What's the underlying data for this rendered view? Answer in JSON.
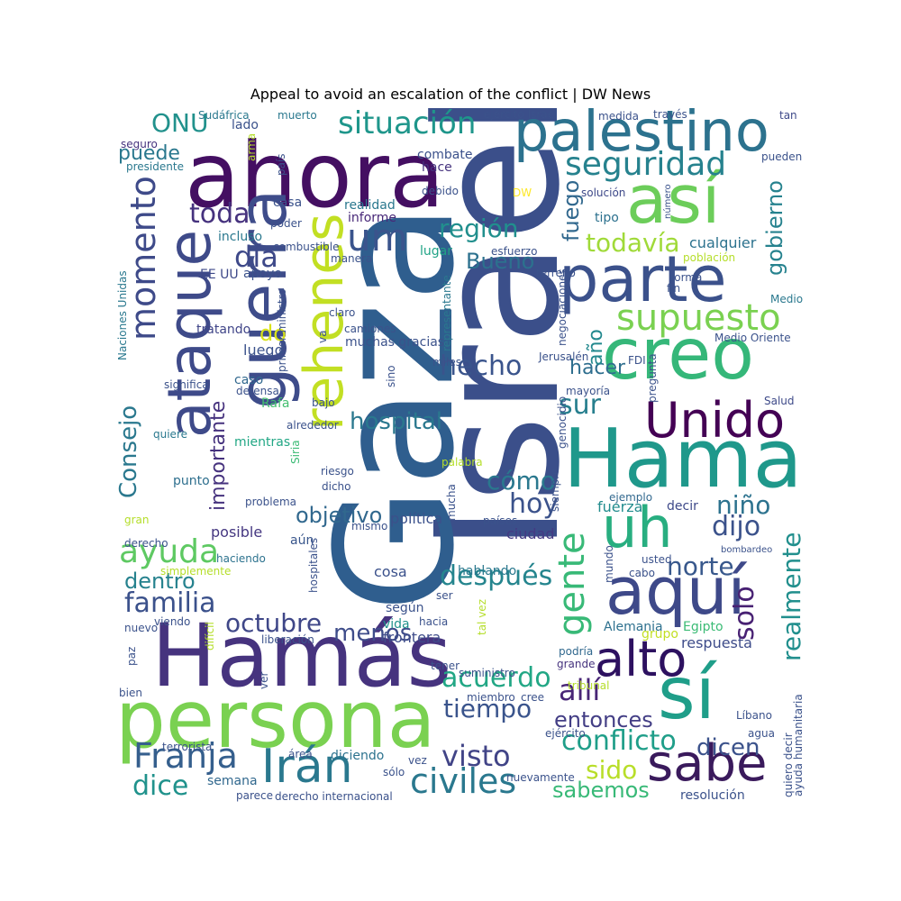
{
  "title": "Appeal to avoid an escalation of the conflict | DW News",
  "words": [
    {
      "text": "Israel",
      "color": "#3b4f8a"
    },
    {
      "text": "Gaza",
      "color": "#2f5e8e"
    },
    {
      "text": "ahora",
      "color": "#440f62"
    },
    {
      "text": "Hamás",
      "color": "#46337e"
    },
    {
      "text": "persona",
      "color": "#7ad151"
    },
    {
      "text": "Hama",
      "color": "#1f988b"
    },
    {
      "text": "guerra",
      "color": "#3e4c8a"
    },
    {
      "text": "ataque",
      "color": "#3e4a89"
    },
    {
      "text": "rehenes",
      "color": "#c2df23"
    },
    {
      "text": "palestino",
      "color": "#2c728e"
    },
    {
      "text": "creo",
      "color": "#35b779"
    },
    {
      "text": "así",
      "color": "#6ccd5a"
    },
    {
      "text": "parte",
      "color": "#3b518b"
    },
    {
      "text": "aquí",
      "color": "#3e4989"
    },
    {
      "text": "sí",
      "color": "#1f9e89"
    },
    {
      "text": "uh",
      "color": "#28ae80"
    },
    {
      "text": "Unido",
      "color": "#440154"
    },
    {
      "text": "sabe",
      "color": "#3a1a5c"
    },
    {
      "text": "alto",
      "color": "#2d1160"
    },
    {
      "text": "Irán",
      "color": "#2a788e"
    },
    {
      "text": "supuesto",
      "color": "#7ad151"
    },
    {
      "text": "momento",
      "color": "#3e4a89"
    },
    {
      "text": "gente",
      "color": "#38b977"
    },
    {
      "text": "seguridad",
      "color": "#26828e"
    },
    {
      "text": "situación",
      "color": "#1f968b"
    },
    {
      "text": "um",
      "color": "#3a548c"
    },
    {
      "text": "Franja",
      "color": "#355f8d"
    },
    {
      "text": "civiles",
      "color": "#2a788e"
    },
    {
      "text": "realmente",
      "color": "#218f8d"
    },
    {
      "text": "ayuda",
      "color": "#5ec962"
    },
    {
      "text": "toda",
      "color": "#46327e"
    },
    {
      "text": "ONU",
      "color": "#21918c"
    },
    {
      "text": "Consejo",
      "color": "#2a788e"
    },
    {
      "text": "región",
      "color": "#218f8d"
    },
    {
      "text": "hecho",
      "color": "#3a548c"
    },
    {
      "text": "todavía",
      "color": "#a0da39"
    },
    {
      "text": "gobierno",
      "color": "#26828e"
    },
    {
      "text": "fuego",
      "color": "#31688e"
    },
    {
      "text": "día",
      "color": "#3e4989"
    },
    {
      "text": "acuerdo",
      "color": "#22a785"
    },
    {
      "text": "familia",
      "color": "#3b518b"
    },
    {
      "text": "octubre",
      "color": "#3f4788"
    },
    {
      "text": "allí",
      "color": "#482576"
    },
    {
      "text": "conflicto",
      "color": "#1f9e89"
    },
    {
      "text": "visto",
      "color": "#414487"
    },
    {
      "text": "dice",
      "color": "#20928c"
    },
    {
      "text": "niño",
      "color": "#2c728e"
    },
    {
      "text": "dijo",
      "color": "#3b528b"
    },
    {
      "text": "norte",
      "color": "#38588c"
    },
    {
      "text": "después",
      "color": "#25858e"
    },
    {
      "text": "hospital",
      "color": "#2a788e"
    },
    {
      "text": "cómo",
      "color": "#2a788e"
    },
    {
      "text": "hoy",
      "color": "#3b528b"
    },
    {
      "text": "sur",
      "color": "#277f8e"
    },
    {
      "text": "Bueno",
      "color": "#2c718e"
    },
    {
      "text": "solo",
      "color": "#482173"
    },
    {
      "text": "dicen",
      "color": "#3b528b"
    },
    {
      "text": "tiempo",
      "color": "#3a548c"
    },
    {
      "text": "entonces",
      "color": "#433e85"
    },
    {
      "text": "sido",
      "color": "#b8de29"
    },
    {
      "text": "sabemos",
      "color": "#38b977"
    },
    {
      "text": "menos",
      "color": "#3e4c8a"
    },
    {
      "text": "dentro",
      "color": "#26828e"
    },
    {
      "text": "objetivo",
      "color": "#31688e"
    },
    {
      "text": "hacer",
      "color": "#2e6e8e"
    },
    {
      "text": "importante",
      "color": "#46327e"
    },
    {
      "text": "año",
      "color": "#23898e"
    },
    {
      "text": "puede",
      "color": "#2a788e"
    },
    {
      "text": "do",
      "color": "#d8e219"
    },
    {
      "text": "lado",
      "color": "#3b528b"
    },
    {
      "text": "muchas gracias",
      "color": "#3b528b"
    },
    {
      "text": "tratando",
      "color": "#404588"
    },
    {
      "text": "luego",
      "color": "#3b528b"
    },
    {
      "text": "política",
      "color": "#3b518b"
    },
    {
      "text": "ciudad",
      "color": "#443a83"
    },
    {
      "text": "frontera",
      "color": "#3e4c8a"
    },
    {
      "text": "cualquier",
      "color": "#2c728e"
    },
    {
      "text": "respuesta",
      "color": "#3e4c8a"
    },
    {
      "text": "Egipto",
      "color": "#3bbb75"
    },
    {
      "text": "Alemania",
      "color": "#2d708e"
    },
    {
      "text": "fuerza",
      "color": "#228c8d"
    },
    {
      "text": "decir",
      "color": "#3e4989"
    },
    {
      "text": "tipo",
      "color": "#2c718e"
    },
    {
      "text": "combate",
      "color": "#3b518b"
    },
    {
      "text": "hace",
      "color": "#46337e"
    },
    {
      "text": "casa",
      "color": "#3b528b"
    },
    {
      "text": "realidad",
      "color": "#2a788e"
    },
    {
      "text": "informe",
      "color": "#482878"
    },
    {
      "text": "lugar",
      "color": "#20a386"
    },
    {
      "text": "posible",
      "color": "#453781"
    },
    {
      "text": "cosa",
      "color": "#3b518b"
    },
    {
      "text": "hablando",
      "color": "#2a788e"
    },
    {
      "text": "según",
      "color": "#3b528b"
    },
    {
      "text": "vida",
      "color": "#20928c"
    },
    {
      "text": "mientras",
      "color": "#22a785"
    },
    {
      "text": "punto",
      "color": "#2e6f8e"
    },
    {
      "text": "caso",
      "color": "#31688e"
    },
    {
      "text": "Rafa",
      "color": "#44bf70"
    },
    {
      "text": "apoyo",
      "color": "#3b528b"
    },
    {
      "text": "incluso",
      "color": "#2a788e"
    },
    {
      "text": "EE UU",
      "color": "#3e4989"
    },
    {
      "text": "diciendo",
      "color": "#2c728e"
    },
    {
      "text": "semana",
      "color": "#31688e"
    },
    {
      "text": "área",
      "color": "#3b528b"
    },
    {
      "text": "derecho",
      "color": "#3b528b"
    },
    {
      "text": "haciendo",
      "color": "#2c728e"
    },
    {
      "text": "aún",
      "color": "#39568c"
    },
    {
      "text": "grupo",
      "color": "#c2df23"
    },
    {
      "text": "podría",
      "color": "#31688e"
    },
    {
      "text": "grande",
      "color": "#46337e"
    },
    {
      "text": "mundo",
      "color": "#3b518b"
    },
    {
      "text": "usted",
      "color": "#3b528b"
    },
    {
      "text": "cabo",
      "color": "#3b528b"
    },
    {
      "text": "ejemplo",
      "color": "#31688e"
    },
    {
      "text": "bombardeo",
      "color": "#3b528b"
    },
    {
      "text": "Salud",
      "color": "#3e4a89"
    },
    {
      "text": "Medio Oriente",
      "color": "#3b528b"
    },
    {
      "text": "Medio",
      "color": "#2a788e"
    },
    {
      "text": "forma",
      "color": "#3b528b"
    },
    {
      "text": "fin",
      "color": "#3b528b"
    },
    {
      "text": "población",
      "color": "#b5de2b"
    },
    {
      "text": "pueden",
      "color": "#3b528b"
    },
    {
      "text": "tan",
      "color": "#3e4989"
    },
    {
      "text": "medida",
      "color": "#3b528b"
    },
    {
      "text": "través",
      "color": "#3b528b"
    },
    {
      "text": "ejército Israel",
      "color": "#3b528b"
    },
    {
      "text": "solución",
      "color": "#3e4989"
    },
    {
      "text": "número",
      "color": "#3b528b"
    },
    {
      "text": "estadounidense",
      "color": "#2a788e"
    },
    {
      "text": "DW",
      "color": "#fde725"
    },
    {
      "text": "debido",
      "color": "#3b528b"
    },
    {
      "text": "esfuerzo",
      "color": "#3b528b"
    },
    {
      "text": "terreno",
      "color": "#3b528b"
    },
    {
      "text": "manera",
      "color": "#3b528b"
    },
    {
      "text": "combustible",
      "color": "#3b528b"
    },
    {
      "text": "poder",
      "color": "#3b528b"
    },
    {
      "text": "país",
      "color": "#3b528b"
    },
    {
      "text": "primer ministro",
      "color": "#3b528b"
    },
    {
      "text": "claro",
      "color": "#3b528b"
    },
    {
      "text": "camiones",
      "color": "#3b528b"
    },
    {
      "text": "representante",
      "color": "#2a788e"
    },
    {
      "text": "negociaciones",
      "color": "#3b528b"
    },
    {
      "text": "Jerusalén",
      "color": "#3b528b"
    },
    {
      "text": "miles",
      "color": "#3b528b"
    },
    {
      "text": "FDI",
      "color": "#3b528b"
    },
    {
      "text": "pregunta",
      "color": "#3b528b"
    },
    {
      "text": "mayoría",
      "color": "#3b528b"
    },
    {
      "text": "genocidio",
      "color": "#3b528b"
    },
    {
      "text": "sino",
      "color": "#3b528b"
    },
    {
      "text": "bajo",
      "color": "#3b528b"
    },
    {
      "text": "alrededor",
      "color": "#3b528b"
    },
    {
      "text": "va",
      "color": "#3b528b"
    },
    {
      "text": "defensa",
      "color": "#3b528b"
    },
    {
      "text": "significa",
      "color": "#3b528b"
    },
    {
      "text": "quiere",
      "color": "#2a788e"
    },
    {
      "text": "Naciones Unidas",
      "color": "#2a788e"
    },
    {
      "text": "Sudáfrica",
      "color": "#2a788e"
    },
    {
      "text": "muerto",
      "color": "#2a788e"
    },
    {
      "text": "arma",
      "color": "#b5de2b"
    },
    {
      "text": "seguro",
      "color": "#46337e"
    },
    {
      "text": "presidente",
      "color": "#2a788e"
    },
    {
      "text": "Siria",
      "color": "#3bbb75"
    },
    {
      "text": "riesgo",
      "color": "#3b528b"
    },
    {
      "text": "dicho",
      "color": "#3b528b"
    },
    {
      "text": "palabra",
      "color": "#b5de2b"
    },
    {
      "text": "mucha",
      "color": "#3b528b"
    },
    {
      "text": "siempre",
      "color": "#3b528b"
    },
    {
      "text": "países",
      "color": "#3b528b"
    },
    {
      "text": "mismo",
      "color": "#3b528b"
    },
    {
      "text": "problema",
      "color": "#3b528b"
    },
    {
      "text": "gran",
      "color": "#b5de2b"
    },
    {
      "text": "simplemente",
      "color": "#b5de2b"
    },
    {
      "text": "hospitales",
      "color": "#3b528b"
    },
    {
      "text": "ser",
      "color": "#3b528b"
    },
    {
      "text": "hacia",
      "color": "#3b528b"
    },
    {
      "text": "tal vez",
      "color": "#b5de2b"
    },
    {
      "text": "nuevo",
      "color": "#3b528b"
    },
    {
      "text": "viendo",
      "color": "#3b528b"
    },
    {
      "text": "difícil",
      "color": "#b5de2b"
    },
    {
      "text": "paz",
      "color": "#3b528b"
    },
    {
      "text": "liberación",
      "color": "#3b528b"
    },
    {
      "text": "tener",
      "color": "#3b528b"
    },
    {
      "text": "suministro",
      "color": "#3b528b"
    },
    {
      "text": "ver",
      "color": "#3b528b"
    },
    {
      "text": "miembro",
      "color": "#3b528b"
    },
    {
      "text": "cree",
      "color": "#3b528b"
    },
    {
      "text": "tribunal",
      "color": "#b5de2b"
    },
    {
      "text": "bien",
      "color": "#3b528b"
    },
    {
      "text": "terrorista",
      "color": "#3b528b"
    },
    {
      "text": "ejército",
      "color": "#3b528b"
    },
    {
      "text": "vez",
      "color": "#3b528b"
    },
    {
      "text": "sólo",
      "color": "#3b528b"
    },
    {
      "text": "nuevamente",
      "color": "#3b528b"
    },
    {
      "text": "parece",
      "color": "#3b528b"
    },
    {
      "text": "derecho internacional",
      "color": "#3b528b"
    },
    {
      "text": "resolución",
      "color": "#3b528b"
    },
    {
      "text": "quiero decir",
      "color": "#3b528b"
    },
    {
      "text": "ayuda humanitaria",
      "color": "#3b528b"
    },
    {
      "text": "Líbano",
      "color": "#3b528b"
    },
    {
      "text": "agua",
      "color": "#3b528b"
    }
  ]
}
